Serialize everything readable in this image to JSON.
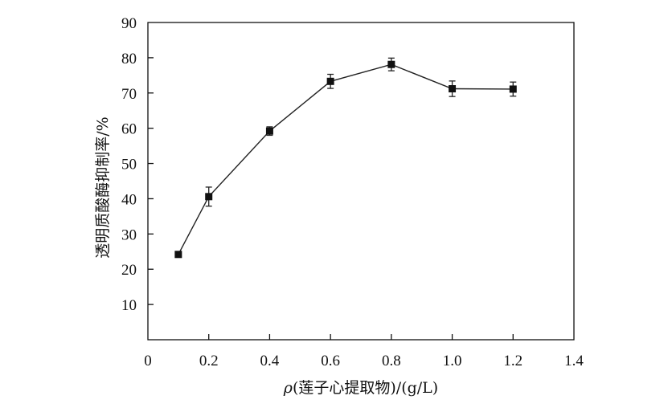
{
  "chart_data": {
    "type": "line",
    "xlabel_prefix": "ρ",
    "xlabel_rest": "(莲子心提取物)/(g/L)",
    "ylabel": "透明质酸酶抑制率/%",
    "xlim": [
      0,
      1.4
    ],
    "ylim": [
      0,
      90
    ],
    "xticks": [
      "0",
      "0.2",
      "0.4",
      "0.6",
      "0.8",
      "1.0",
      "1.2",
      "1.4"
    ],
    "yticks": [
      "10",
      "20",
      "30",
      "40",
      "50",
      "60",
      "70",
      "80",
      "90"
    ],
    "grid": false,
    "legend": "none",
    "series": [
      {
        "x": [
          0.1,
          0.2,
          0.4,
          0.6,
          0.8,
          1.0,
          1.2
        ],
        "y": [
          24.2,
          40.6,
          59.2,
          73.3,
          78.1,
          71.2,
          71.1
        ],
        "err": [
          0.8,
          2.7,
          1.2,
          2.0,
          1.8,
          2.2,
          2.0
        ]
      }
    ]
  }
}
